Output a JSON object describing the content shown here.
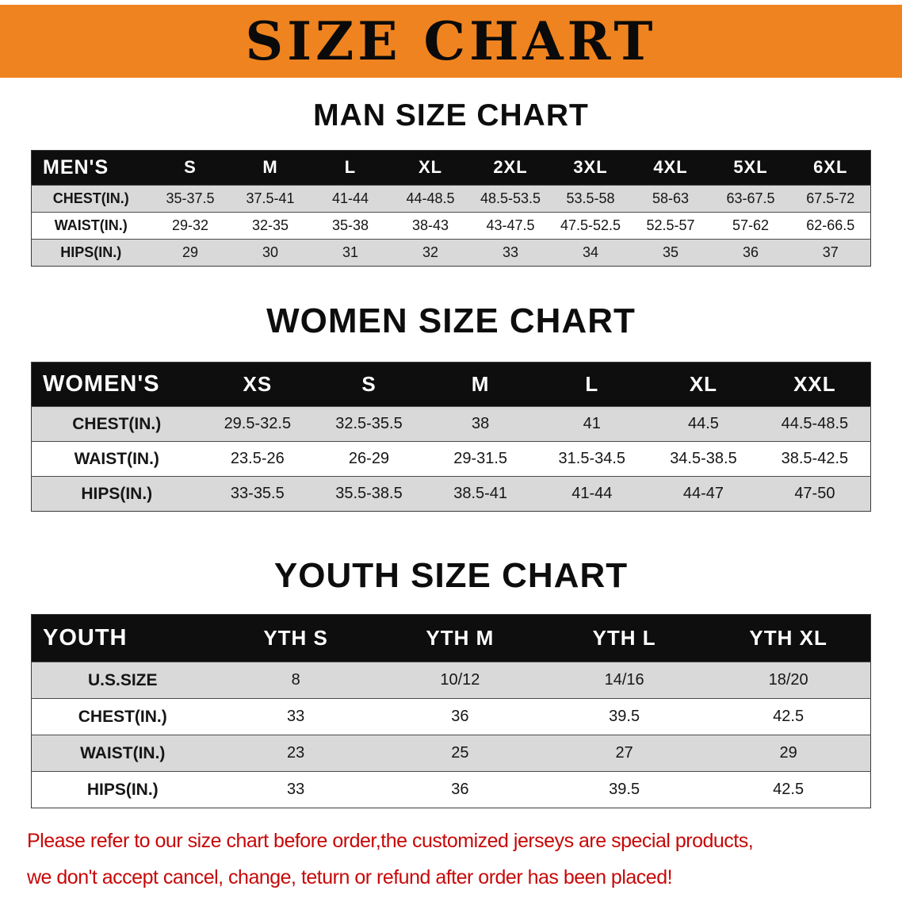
{
  "banner": {
    "title": "SIZE CHART"
  },
  "colors": {
    "banner_bg": "#EF831F",
    "header_bg": "#0E0E0E",
    "shaded_row": "#D9D9D9",
    "note_red": "#C70808",
    "text": "#161616"
  },
  "chart_data": [
    {
      "type": "table",
      "title": "MAN SIZE CHART",
      "columns": [
        "MEN'S",
        "S",
        "M",
        "L",
        "XL",
        "2XL",
        "3XL",
        "4XL",
        "5XL",
        "6XL"
      ],
      "rows": [
        [
          "CHEST(IN.)",
          "35-37.5",
          "37.5-41",
          "41-44",
          "44-48.5",
          "48.5-53.5",
          "53.5-58",
          "58-63",
          "63-67.5",
          "67.5-72"
        ],
        [
          "WAIST(IN.)",
          "29-32",
          "32-35",
          "35-38",
          "38-43",
          "43-47.5",
          "47.5-52.5",
          "52.5-57",
          "57-62",
          "62-66.5"
        ],
        [
          "HIPS(IN.)",
          "29",
          "30",
          "31",
          "32",
          "33",
          "34",
          "35",
          "36",
          "37"
        ]
      ]
    },
    {
      "type": "table",
      "title": "WOMEN SIZE CHART",
      "columns": [
        "WOMEN'S",
        "XS",
        "S",
        "M",
        "L",
        "XL",
        "XXL"
      ],
      "rows": [
        [
          "CHEST(IN.)",
          "29.5-32.5",
          "32.5-35.5",
          "38",
          "41",
          "44.5",
          "44.5-48.5"
        ],
        [
          "WAIST(IN.)",
          "23.5-26",
          "26-29",
          "29-31.5",
          "31.5-34.5",
          "34.5-38.5",
          "38.5-42.5"
        ],
        [
          "HIPS(IN.)",
          "33-35.5",
          "35.5-38.5",
          "38.5-41",
          "41-44",
          "44-47",
          "47-50"
        ]
      ]
    },
    {
      "type": "table",
      "title": "YOUTH SIZE CHART",
      "columns": [
        "YOUTH",
        "YTH S",
        "YTH M",
        "YTH L",
        "YTH XL"
      ],
      "rows": [
        [
          "U.S.SIZE",
          "8",
          "10/12",
          "14/16",
          "18/20"
        ],
        [
          "CHEST(IN.)",
          "33",
          "36",
          "39.5",
          "42.5"
        ],
        [
          "WAIST(IN.)",
          "23",
          "25",
          "27",
          "29"
        ],
        [
          "HIPS(IN.)",
          "33",
          "36",
          "39.5",
          "42.5"
        ]
      ]
    }
  ],
  "footer": {
    "line1": "Please refer to our size chart before order,the customized jerseys are special products,",
    "line2": "we don't accept cancel, change, teturn or refund after order has been placed!"
  }
}
